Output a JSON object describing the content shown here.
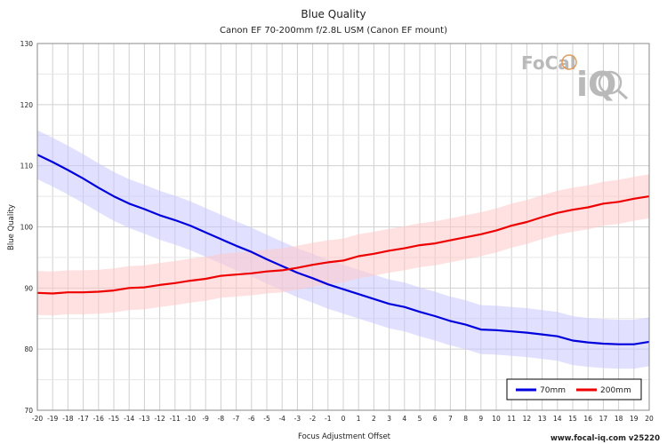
{
  "chart_data": {
    "type": "line",
    "title": "Blue Quality",
    "subtitle": "Canon EF 70-200mm f/2.8L USM (Canon EF mount)",
    "xlabel": "Focus Adjustment Offset",
    "ylabel": "Blue Quality",
    "xlim": [
      -20,
      20
    ],
    "ylim": [
      70,
      130
    ],
    "xticks": [
      "-20",
      "-19",
      "-18",
      "-17",
      "-16",
      "-15",
      "-14",
      "-13",
      "-12",
      "-11",
      "-10",
      "-9",
      "-8",
      "-7",
      "-6",
      "-5",
      "-4",
      "-3",
      "-2",
      "-1",
      "0",
      "1",
      "2",
      "3",
      "4",
      "5",
      "6",
      "7",
      "8",
      "9",
      "10",
      "11",
      "12",
      "13",
      "14",
      "15",
      "16",
      "17",
      "18",
      "19",
      "20"
    ],
    "yticks": [
      "70",
      "80",
      "90",
      "100",
      "110",
      "120",
      "130"
    ],
    "grid": true,
    "legend_position": "bottom-right",
    "x": [
      -20,
      -19,
      -18,
      -17,
      -16,
      -15,
      -14,
      -13,
      -12,
      -11,
      -10,
      -9,
      -8,
      -7,
      -6,
      -5,
      -4,
      -3,
      -2,
      -1,
      0,
      1,
      2,
      3,
      4,
      5,
      6,
      7,
      8,
      9,
      10,
      11,
      12,
      13,
      14,
      15,
      16,
      17,
      18,
      19,
      20
    ],
    "series": [
      {
        "name": "70mm",
        "color": "#0000dd",
        "band_color": "#c8c8ff",
        "values": [
          111.8,
          110.6,
          109.3,
          107.9,
          106.4,
          105.0,
          103.8,
          102.9,
          101.9,
          101.1,
          100.2,
          99.1,
          98.0,
          96.9,
          95.9,
          94.7,
          93.6,
          92.5,
          91.6,
          90.6,
          89.8,
          89.0,
          88.2,
          87.4,
          86.9,
          86.1,
          85.4,
          84.6,
          84.0,
          83.2,
          83.1,
          82.9,
          82.7,
          82.4,
          82.1,
          81.4,
          81.1,
          80.9,
          80.8,
          80.8,
          81.2
        ],
        "band": 4.0
      },
      {
        "name": "200mm",
        "color": "#ee0000",
        "band_color": "#ffc8c8",
        "values": [
          89.2,
          89.1,
          89.3,
          89.3,
          89.4,
          89.6,
          90.0,
          90.1,
          90.5,
          90.8,
          91.2,
          91.5,
          92.0,
          92.2,
          92.4,
          92.7,
          92.9,
          93.3,
          93.8,
          94.2,
          94.5,
          95.2,
          95.6,
          96.1,
          96.5,
          97.0,
          97.3,
          97.8,
          98.3,
          98.8,
          99.4,
          100.2,
          100.8,
          101.6,
          102.3,
          102.8,
          103.2,
          103.8,
          104.1,
          104.6,
          105.0
        ],
        "band": 3.6
      }
    ]
  },
  "brand": {
    "logo_text_top": "FoCal",
    "logo_text_big": "iQ",
    "footer": "www.focal-iq.com  v25220"
  },
  "colors": {
    "grid": "#d0d0d0",
    "axis": "#888888",
    "logo": "#b9b9b9",
    "logo_accent": "#e09b5a"
  }
}
